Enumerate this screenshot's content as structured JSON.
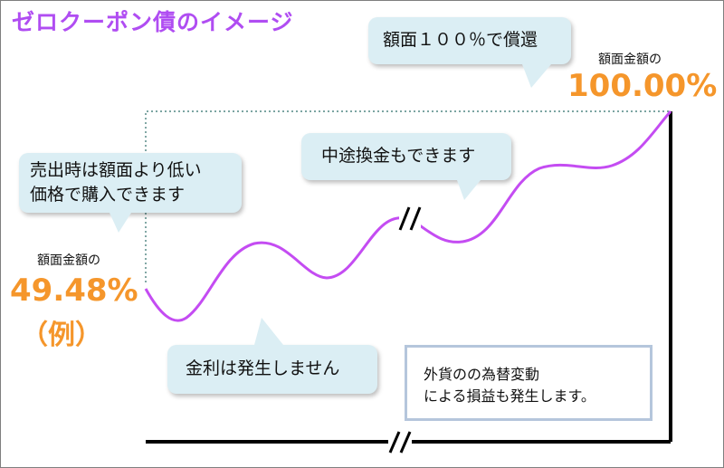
{
  "title": "ゼロクーポン債のイメージ",
  "colors": {
    "title": "#b04df2",
    "curve": "#c44cf2",
    "value": "#f5962b",
    "bubble_fill": "#dbeef4",
    "note_border": "#b5c6dc"
  },
  "callouts": {
    "redemption": "額面１００％で償還",
    "purchase_line1": "売出時は額面より低い",
    "purchase_line2": "価格で購入できます",
    "cash_out": "中途換金もできます",
    "no_interest": "金利は発生しません"
  },
  "start_point": {
    "label": "額面金額の",
    "value": "49.48%",
    "note": "（例）"
  },
  "end_point": {
    "label": "額面金額の",
    "value": "100.00%"
  },
  "fx_note": {
    "line1": "外貨のの為替変動",
    "line2": "による損益も発生します。"
  }
}
